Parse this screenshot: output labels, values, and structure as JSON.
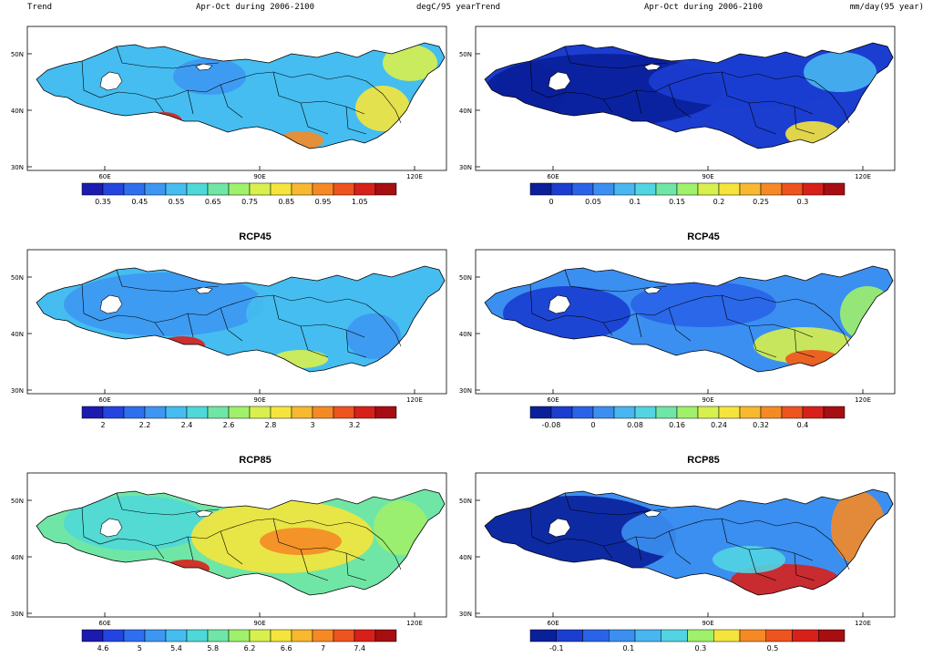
{
  "map_axes": {
    "y_ticks": [
      "50N",
      "40N",
      "30N"
    ],
    "x_ticks": [
      "60E",
      "90E",
      "120E"
    ]
  },
  "panels": [
    {
      "id": "temp-rcp26",
      "title_left": "Trend",
      "title_center": "Apr-Oct during 2006-2100",
      "title_right": "degC/95 year",
      "scenario": "",
      "colorbar_labels": [
        "0.35",
        "0.45",
        "0.55",
        "0.65",
        "0.75",
        "0.85",
        "0.95",
        "1.05"
      ],
      "colorbar_colors": [
        "#1b1bb0",
        "#2444e0",
        "#2d6fef",
        "#3d97f2",
        "#45bdf0",
        "#4fd8d8",
        "#6fe6a6",
        "#9ff06b",
        "#d7f04d",
        "#f5e43c",
        "#f8b82f",
        "#f58a25",
        "#ee541d",
        "#d8201b",
        "#a60e12"
      ]
    },
    {
      "id": "precip-rcp26",
      "title_left": "Trend",
      "title_center": "Apr-Oct during 2006-2100",
      "title_right": "mm/day(95 year)",
      "scenario": "",
      "colorbar_labels": [
        "0",
        "0.05",
        "0.1",
        "0.15",
        "0.2",
        "0.25",
        "0.3"
      ],
      "colorbar_colors": [
        "#0a1f9a",
        "#1b3dd0",
        "#2a63e8",
        "#3b8ff0",
        "#48b6f0",
        "#52d4e2",
        "#6fe6a6",
        "#9ff06b",
        "#d7f04d",
        "#f5e43c",
        "#f8b82f",
        "#f58a25",
        "#ee541d",
        "#d8201b",
        "#a60e12"
      ]
    },
    {
      "id": "temp-rcp45",
      "title_left": "",
      "title_center": "",
      "title_right": "",
      "scenario": "RCP45",
      "colorbar_labels": [
        "2",
        "2.2",
        "2.4",
        "2.6",
        "2.8",
        "3",
        "3.2"
      ],
      "colorbar_colors": [
        "#1b1bb0",
        "#2444e0",
        "#2d6fef",
        "#3d97f2",
        "#45bdf0",
        "#4fd8d8",
        "#6fe6a6",
        "#9ff06b",
        "#d7f04d",
        "#f5e43c",
        "#f8b82f",
        "#f58a25",
        "#ee541d",
        "#d8201b",
        "#a60e12"
      ]
    },
    {
      "id": "precip-rcp45",
      "title_left": "",
      "title_center": "",
      "title_right": "",
      "scenario": "RCP45",
      "colorbar_labels": [
        "-0.08",
        "0",
        "0.08",
        "0.16",
        "0.24",
        "0.32",
        "0.4"
      ],
      "colorbar_colors": [
        "#0a1f9a",
        "#1b3dd0",
        "#2a63e8",
        "#3b8ff0",
        "#48b6f0",
        "#52d4e2",
        "#6fe6a6",
        "#9ff06b",
        "#d7f04d",
        "#f5e43c",
        "#f8b82f",
        "#f58a25",
        "#ee541d",
        "#d8201b",
        "#a60e12"
      ]
    },
    {
      "id": "temp-rcp85",
      "title_left": "",
      "title_center": "",
      "title_right": "",
      "scenario": "RCP85",
      "colorbar_labels": [
        "4.6",
        "5",
        "5.4",
        "5.8",
        "6.2",
        "6.6",
        "7",
        "7.4"
      ],
      "colorbar_colors": [
        "#1b1bb0",
        "#2444e0",
        "#2d6fef",
        "#3d97f2",
        "#45bdf0",
        "#4fd8d8",
        "#6fe6a6",
        "#9ff06b",
        "#d7f04d",
        "#f5e43c",
        "#f8b82f",
        "#f58a25",
        "#ee541d",
        "#d8201b",
        "#a60e12"
      ]
    },
    {
      "id": "precip-rcp85",
      "title_left": "",
      "title_center": "",
      "title_right": "",
      "scenario": "RCP85",
      "colorbar_labels": [
        "-0.1",
        "0.1",
        "0.3",
        "0.5"
      ],
      "colorbar_colors": [
        "#0a1f9a",
        "#1b3dd0",
        "#2a63e8",
        "#3b8ff0",
        "#48b6f0",
        "#52d4e2",
        "#9ff06b",
        "#f5e43c",
        "#f58a25",
        "#ee541d",
        "#d8201b",
        "#a60e12"
      ]
    }
  ]
}
